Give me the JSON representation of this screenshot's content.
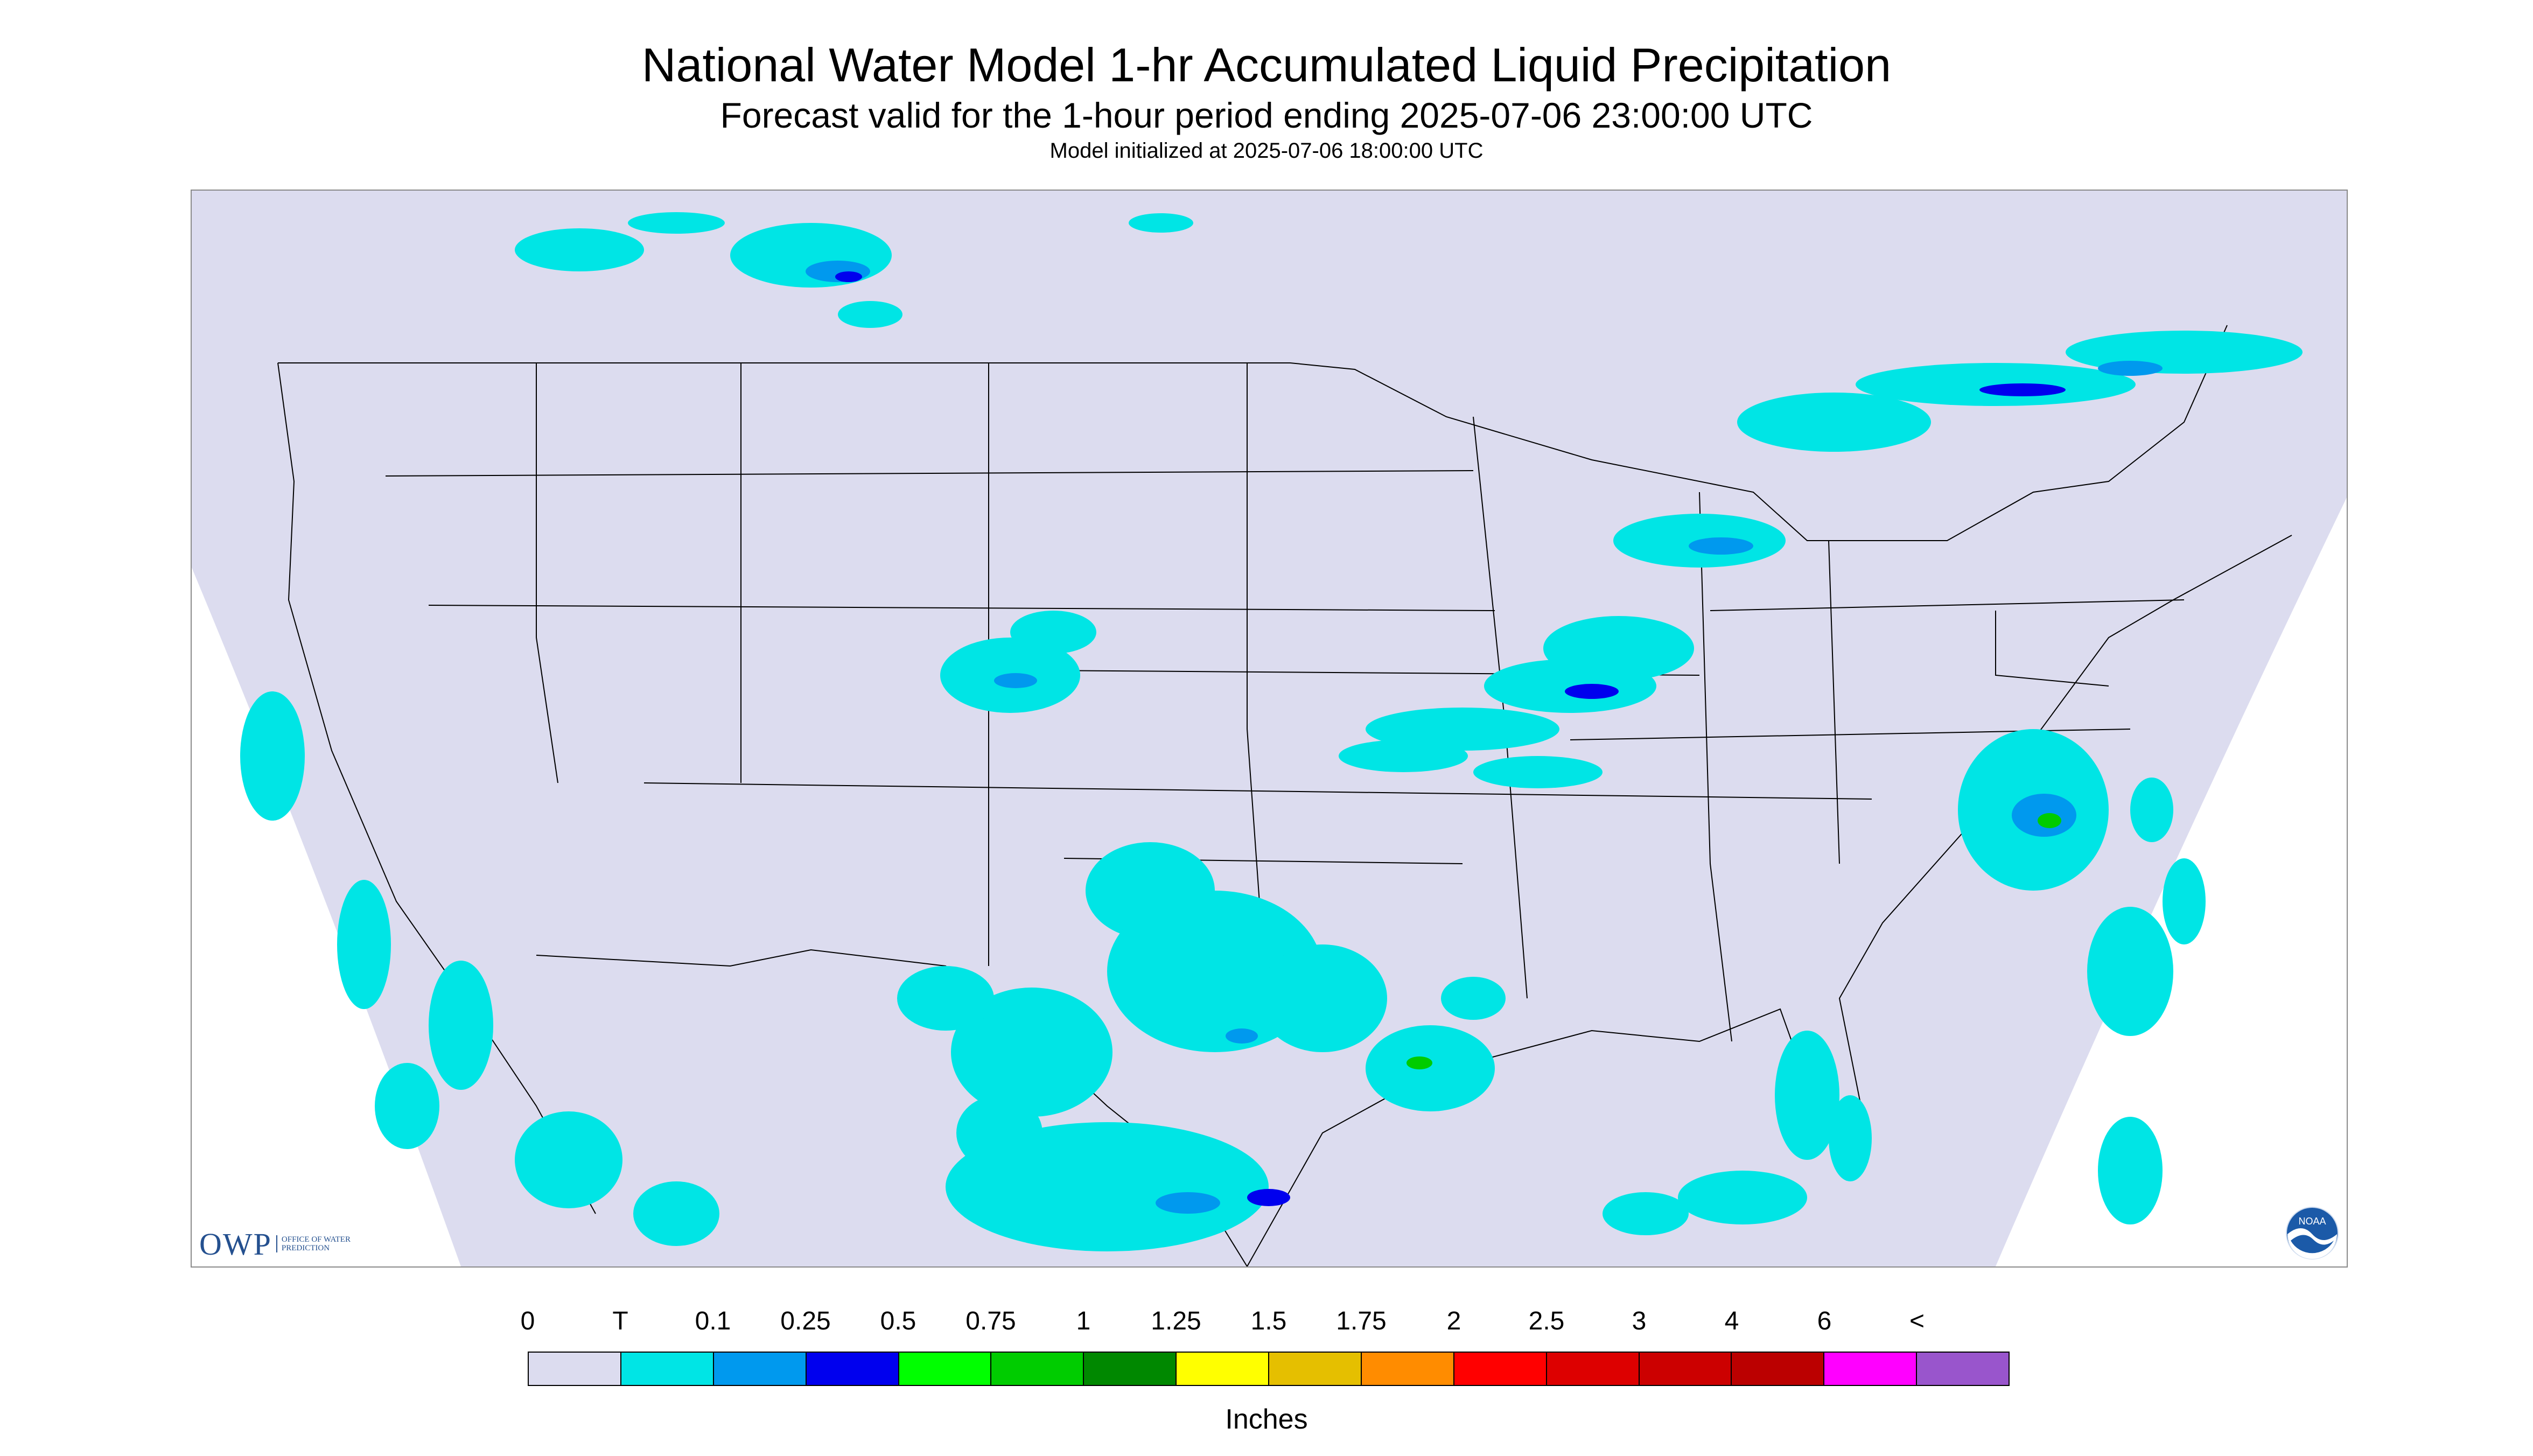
{
  "title": "National Water Model 1-hr Accumulated Liquid Precipitation",
  "subtitle": "Forecast valid for the 1-hour period ending 2025-07-06 23:00:00 UTC",
  "initialized": "Model initialized at 2025-07-06 18:00:00 UTC",
  "map": {
    "region": "Continental United States",
    "background_color": "#dcdcef",
    "outside_projection_color": "#ffffff",
    "boundary_color": "#000000",
    "precip_trace_color": "#00e5e5",
    "precip_light_color": "#0099ee",
    "precip_medium_color": "#0000ee",
    "precip_heavy_color": "#00cc00"
  },
  "logos": {
    "owp": {
      "text": "OWP",
      "subtext": "OFFICE OF WATER PREDICTION",
      "icon": "owp-logo"
    },
    "noaa": {
      "text": "NOAA",
      "icon": "noaa-logo"
    }
  },
  "legend": {
    "tick_labels": [
      "0",
      "T",
      "0.1",
      "0.25",
      "0.5",
      "0.75",
      "1",
      "1.25",
      "1.5",
      "1.75",
      "2",
      "2.5",
      "3",
      "4",
      "6",
      "<"
    ],
    "colors": [
      "#dcdcef",
      "#00e5e5",
      "#0099ee",
      "#0000ee",
      "#00ff00",
      "#00cc00",
      "#008800",
      "#ffff00",
      "#e5bf00",
      "#ff8c00",
      "#ff0000",
      "#dd0000",
      "#cc0000",
      "#bb0000",
      "#ff00ff",
      "#9955cc"
    ],
    "units": "Inches"
  }
}
